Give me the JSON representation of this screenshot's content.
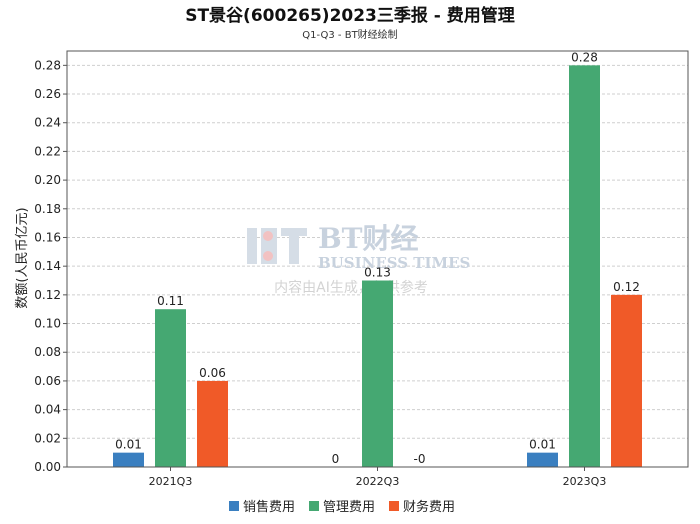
{
  "chart_data": {
    "type": "bar",
    "title": "ST景谷(600265)2023三季报 - 费用管理",
    "subtitle": "Q1-Q3 - BT财经绘制",
    "ylabel": "数额(人民币亿元)",
    "xlabel": "",
    "categories": [
      "2021Q3",
      "2022Q3",
      "2023Q3"
    ],
    "series": [
      {
        "name": "销售费用",
        "color": "#3a7fc0",
        "values": [
          0.01,
          0,
          0.01
        ],
        "labels": [
          "0.01",
          "0",
          "0.01"
        ]
      },
      {
        "name": "管理费用",
        "color": "#45a872",
        "values": [
          0.11,
          0.13,
          0.28
        ],
        "labels": [
          "0.11",
          "0.13",
          "0.28"
        ]
      },
      {
        "name": "财务费用",
        "color": "#f05a28",
        "values": [
          0.06,
          0,
          0.12
        ],
        "labels": [
          "0.06",
          "-0",
          "0.12"
        ]
      }
    ],
    "ylim": [
      0,
      0.29
    ],
    "yticks": [
      "0.00",
      "0.02",
      "0.04",
      "0.06",
      "0.08",
      "0.10",
      "0.12",
      "0.14",
      "0.16",
      "0.18",
      "0.20",
      "0.22",
      "0.24",
      "0.26",
      "0.28"
    ],
    "grid": true,
    "legend_position": "bottom"
  },
  "watermark": {
    "logo_text": "BT财经",
    "latin_text": "BUSINESS TIMES",
    "note": "内容由AI生成，仅供参考"
  }
}
